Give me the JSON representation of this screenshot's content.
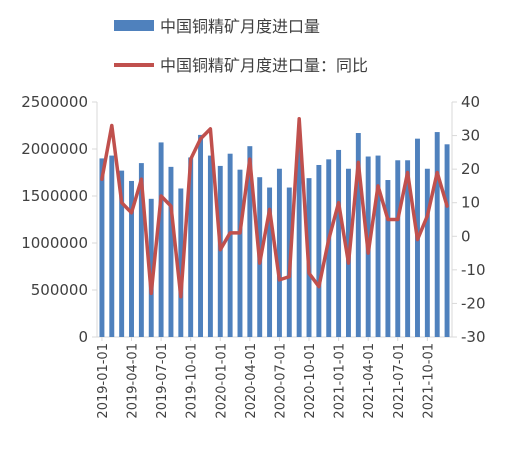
{
  "chart_data": {
    "type": "bar+line",
    "x": [
      "2019-01",
      "2019-02",
      "2019-03",
      "2019-04",
      "2019-05",
      "2019-06",
      "2019-07",
      "2019-08",
      "2019-09",
      "2019-10",
      "2019-11",
      "2019-12",
      "2020-01",
      "2020-02",
      "2020-03",
      "2020-04",
      "2020-05",
      "2020-06",
      "2020-07",
      "2020-08",
      "2020-09",
      "2020-10",
      "2020-11",
      "2020-12",
      "2021-01",
      "2021-02",
      "2021-03",
      "2021-04",
      "2021-05",
      "2021-06",
      "2021-07",
      "2021-08",
      "2021-09",
      "2021-10",
      "2021-11",
      "2021-12"
    ],
    "x_tick_labels": [
      "2019-01-01",
      "2019-04-01",
      "2019-07-01",
      "2019-10-01",
      "2020-01-01",
      "2020-04-01",
      "2020-07-01",
      "2020-10-01",
      "2021-01-01",
      "2021-04-01",
      "2021-07-01",
      "2021-10-01"
    ],
    "series": [
      {
        "name": "中国铜精矿月度进口量",
        "type": "bar",
        "axis": "left",
        "color": "#4f81bd",
        "values": [
          1900000,
          1930000,
          1770000,
          1660000,
          1850000,
          1470000,
          2070000,
          1810000,
          1580000,
          1910000,
          2150000,
          1930000,
          1820000,
          1950000,
          1780000,
          2030000,
          1700000,
          1590000,
          1790000,
          1590000,
          2050000,
          1690000,
          1830000,
          1890000,
          1990000,
          1790000,
          2170000,
          1920000,
          1930000,
          1670000,
          1880000,
          1880000,
          2110000,
          1790000,
          2180000,
          2050000
        ]
      },
      {
        "name": "中国铜精矿月度进口量：同比",
        "type": "line",
        "axis": "right",
        "color": "#c0504d",
        "values": [
          17,
          33,
          10,
          7,
          17,
          -17,
          12,
          9,
          -18,
          23,
          29,
          32,
          -4,
          1,
          1,
          23,
          -8,
          8,
          -13,
          -12,
          35,
          -11,
          -15,
          -1,
          10,
          -8,
          22,
          -5,
          15,
          5,
          5,
          19,
          -1,
          6,
          19,
          9
        ]
      }
    ],
    "y_left": {
      "min": 0,
      "max": 2500000,
      "ticks": [
        0,
        500000,
        1000000,
        1500000,
        2000000,
        2500000
      ]
    },
    "y_right": {
      "min": -30,
      "max": 40,
      "ticks": [
        -30,
        -20,
        -10,
        0,
        10,
        20,
        30,
        40
      ]
    },
    "legend": {
      "position": "top"
    }
  }
}
